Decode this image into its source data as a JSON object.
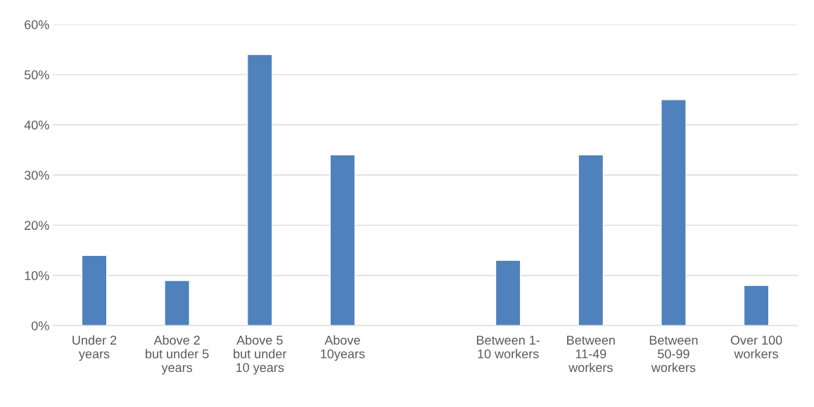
{
  "chart_data": {
    "type": "bar",
    "categories": [
      "Under 2\nyears",
      "Above 2\nbut under 5\nyears",
      "Above 5\nbut under\n10 years",
      "Above\n10years",
      null,
      "Between 1-\n10 workers",
      "Between\n11-49\nworkers",
      "Between\n50-99\nworkers",
      "Over 100\nworkers"
    ],
    "values": [
      14,
      9,
      54,
      34,
      null,
      13,
      34,
      45,
      8
    ],
    "color": "#4f81bd",
    "ylim": [
      0,
      60
    ],
    "yticks": [
      {
        "value": 0,
        "label": "0%"
      },
      {
        "value": 10,
        "label": "10%"
      },
      {
        "value": 20,
        "label": "20%"
      },
      {
        "value": 30,
        "label": "30%"
      },
      {
        "value": 40,
        "label": "40%"
      },
      {
        "value": 50,
        "label": "50%"
      },
      {
        "value": 60,
        "label": "60%"
      }
    ],
    "grid": "y",
    "legend": false
  }
}
